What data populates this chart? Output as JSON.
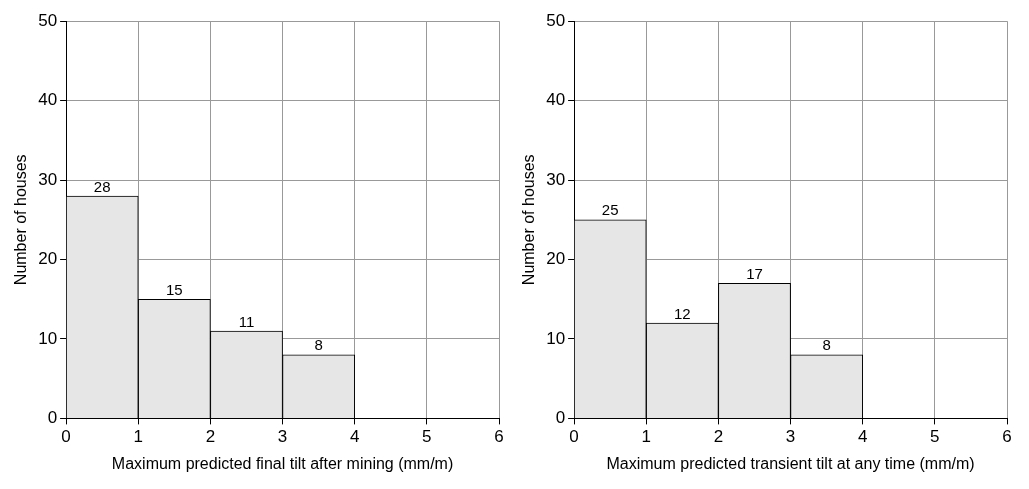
{
  "chart_data": [
    {
      "type": "histogram",
      "xlabel": "Maximum predicted final tilt after mining (mm/m)",
      "ylabel": "Number of houses",
      "bins": [
        0,
        1,
        2,
        3,
        4
      ],
      "values": [
        28,
        15,
        11,
        8
      ],
      "color": "#e6e6e6",
      "xlim": [
        0,
        6
      ],
      "xticks": [
        0,
        1,
        2,
        3,
        4,
        5,
        6
      ],
      "ylim": [
        0,
        50
      ],
      "yticks": [
        0,
        10,
        20,
        30,
        40,
        50
      ],
      "grid": true,
      "data_labels": true
    },
    {
      "type": "histogram",
      "xlabel": "Maximum predicted transient tilt at any time (mm/m)",
      "ylabel": "Number of houses",
      "bins": [
        0,
        1,
        2,
        3,
        4
      ],
      "values": [
        25,
        12,
        17,
        8
      ],
      "color": "#e6e6e6",
      "xlim": [
        0,
        6
      ],
      "xticks": [
        0,
        1,
        2,
        3,
        4,
        5,
        6
      ],
      "ylim": [
        0,
        50
      ],
      "yticks": [
        0,
        10,
        20,
        30,
        40,
        50
      ],
      "grid": true,
      "data_labels": true
    }
  ]
}
